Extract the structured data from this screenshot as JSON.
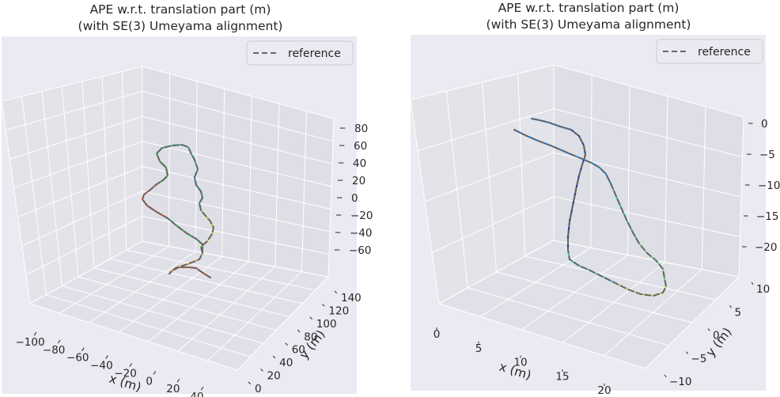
{
  "chart_data": [
    {
      "type": "line",
      "projection": "3d",
      "title": "APE w.r.t. translation part (m)",
      "subtitle": "(with SE(3) Umeyama alignment)",
      "legend": {
        "position": "top-right",
        "entries": [
          "reference"
        ]
      },
      "xlabel": "x (m)",
      "ylabel": "y (m)",
      "zlabel": "",
      "x_ticks": [
        "−100",
        "−80",
        "−60",
        "−40",
        "−20",
        "0",
        "20",
        "40"
      ],
      "y_ticks": [
        "0",
        "20",
        "40",
        "60",
        "80",
        "100",
        "120",
        "140"
      ],
      "z_ticks": [
        "80",
        "60",
        "40",
        "20",
        "0",
        "−20",
        "−40",
        "−60"
      ],
      "grid": true,
      "background": "#eaeaf2",
      "colormap": "jet",
      "reference_style": {
        "color": "#666666",
        "dash": "dashed"
      }
    },
    {
      "type": "line",
      "projection": "3d",
      "title": "APE w.r.t. translation part (m)",
      "subtitle": "(with SE(3) Umeyama alignment)",
      "legend": {
        "position": "top-right",
        "entries": [
          "reference"
        ]
      },
      "xlabel": "x (m)",
      "ylabel": "y (m)",
      "zlabel": "",
      "x_ticks": [
        "0",
        "5",
        "10",
        "15",
        "20"
      ],
      "y_ticks": [
        "10",
        "5",
        "0",
        "−5",
        "−10"
      ],
      "z_ticks": [
        "0",
        "−5",
        "−10",
        "−15",
        "−20"
      ],
      "grid": true,
      "background": "#eaeaf2",
      "colormap": "jet",
      "reference_style": {
        "color": "#666666",
        "dash": "dashed"
      }
    }
  ]
}
